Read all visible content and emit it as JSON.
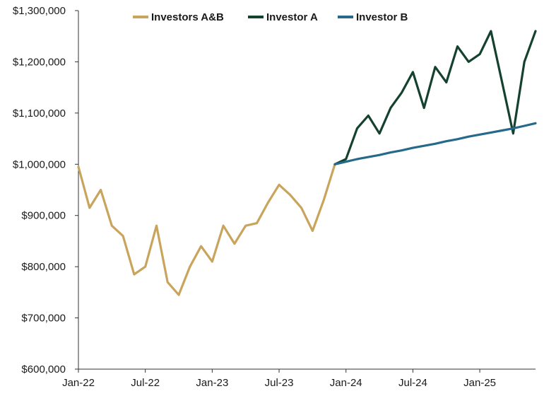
{
  "chart_data": {
    "type": "line",
    "title": "",
    "xlabel": "",
    "ylabel": "",
    "ylim": [
      600000,
      1300000
    ],
    "y_ticks": [
      "$600,000",
      "$700,000",
      "$800,000",
      "$900,000",
      "$1,000,000",
      "$1,100,000",
      "$1,200,000",
      "$1,300,000"
    ],
    "y_tick_values": [
      600000,
      700000,
      800000,
      900000,
      1000000,
      1100000,
      1200000,
      1300000
    ],
    "x_ticks": [
      "Jan-22",
      "Jul-22",
      "Jan-23",
      "Jul-23",
      "Jan-24",
      "Jul-24",
      "Jan-25"
    ],
    "x_tick_values": [
      "2022-01",
      "2022-07",
      "2023-01",
      "2023-07",
      "2024-01",
      "2024-07",
      "2025-01"
    ],
    "xlim": [
      "2022-01",
      "2025-06"
    ],
    "grid": false,
    "legend_placement": "top-center",
    "series": [
      {
        "name": "Investors A&B",
        "color": "#c8a45c",
        "x": [
          "2022-01",
          "2022-02",
          "2022-03",
          "2022-04",
          "2022-05",
          "2022-06",
          "2022-07",
          "2022-08",
          "2022-09",
          "2022-10",
          "2022-11",
          "2022-12",
          "2023-01",
          "2023-02",
          "2023-03",
          "2023-04",
          "2023-05",
          "2023-06",
          "2023-07",
          "2023-08",
          "2023-09",
          "2023-10",
          "2023-11",
          "2023-12"
        ],
        "y": [
          995000,
          915000,
          950000,
          880000,
          860000,
          785000,
          800000,
          880000,
          770000,
          745000,
          800000,
          840000,
          810000,
          880000,
          845000,
          880000,
          885000,
          925000,
          960000,
          940000,
          915000,
          870000,
          930000,
          1000000
        ]
      },
      {
        "name": "Investor A",
        "color": "#14422f",
        "x": [
          "2023-12",
          "2024-01",
          "2024-02",
          "2024-03",
          "2024-04",
          "2024-05",
          "2024-06",
          "2024-07",
          "2024-08",
          "2024-09",
          "2024-10",
          "2024-11",
          "2024-12",
          "2025-01",
          "2025-02",
          "2025-03",
          "2025-04",
          "2025-05",
          "2025-06"
        ],
        "y": [
          1000000,
          1010000,
          1070000,
          1095000,
          1060000,
          1110000,
          1140000,
          1180000,
          1110000,
          1190000,
          1160000,
          1230000,
          1200000,
          1215000,
          1260000,
          1160000,
          1060000,
          1200000,
          1260000
        ]
      },
      {
        "name": "Investor B",
        "color": "#256a8a",
        "x": [
          "2023-12",
          "2024-01",
          "2024-02",
          "2024-03",
          "2024-04",
          "2024-05",
          "2024-06",
          "2024-07",
          "2024-08",
          "2024-09",
          "2024-10",
          "2024-11",
          "2024-12",
          "2025-01",
          "2025-02",
          "2025-03",
          "2025-04",
          "2025-05",
          "2025-06"
        ],
        "y": [
          1000000,
          1005000,
          1010000,
          1014000,
          1018000,
          1023000,
          1027000,
          1032000,
          1036000,
          1040000,
          1045000,
          1049000,
          1054000,
          1058000,
          1062000,
          1066000,
          1070000,
          1075000,
          1080000
        ]
      }
    ]
  }
}
